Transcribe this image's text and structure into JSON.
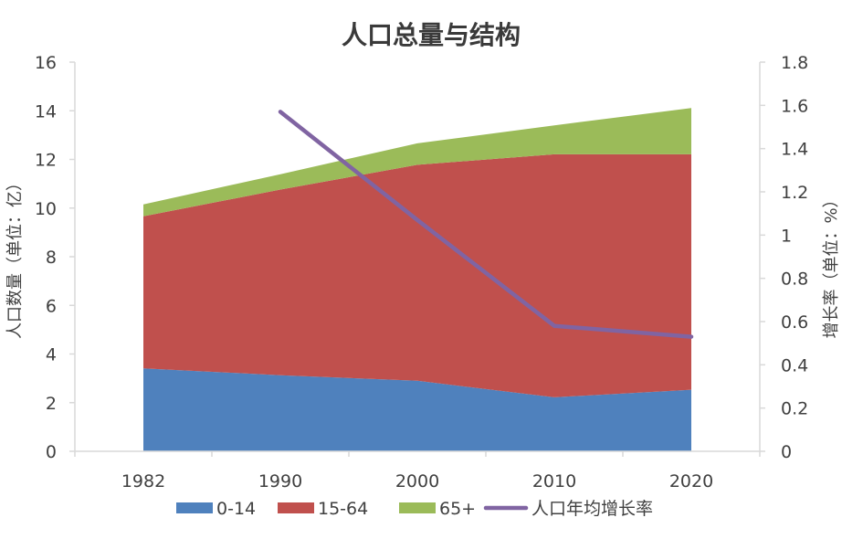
{
  "chart_data": {
    "type": "area",
    "title": "人口总量与结构",
    "categories": [
      "1982",
      "1990",
      "2000",
      "2010",
      "2020"
    ],
    "ylabel_left": "人口数量（单位：亿）",
    "ylabel_right": "增长率（单位：%）",
    "ylim_left": [
      0,
      16
    ],
    "ylim_right": [
      0,
      1.8
    ],
    "yticks_left": [
      "0",
      "2",
      "4",
      "6",
      "8",
      "10",
      "12",
      "14",
      "16"
    ],
    "yticks_right": [
      "0",
      "0.2",
      "0.4",
      "0.6",
      "0.8",
      "1",
      "1.2",
      "1.4",
      "1.6",
      "1.8"
    ],
    "grid": false,
    "legend_position": "bottom",
    "series": [
      {
        "name": "0-14",
        "type": "area",
        "axis": "left",
        "color": "#4f81bd",
        "values": [
          3.41,
          3.13,
          2.9,
          2.22,
          2.53
        ]
      },
      {
        "name": "15-64",
        "type": "area",
        "axis": "left",
        "color": "#c0504d",
        "values": [
          6.25,
          7.63,
          8.88,
          9.99,
          9.68
        ]
      },
      {
        "name": "65+",
        "type": "area",
        "axis": "left",
        "color": "#9bbb59",
        "values": [
          0.49,
          0.63,
          0.88,
          1.19,
          1.9
        ]
      },
      {
        "name": "人口年均增长率",
        "type": "line",
        "axis": "right",
        "color": "#8064a2",
        "values": [
          null,
          1.57,
          1.07,
          0.58,
          0.53
        ]
      }
    ]
  }
}
